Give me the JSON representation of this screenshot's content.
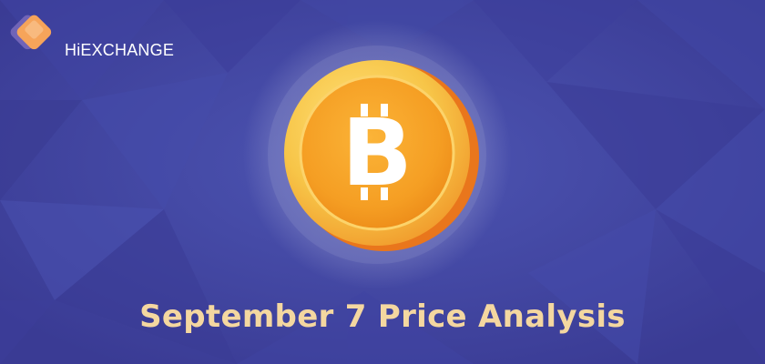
{
  "brand": {
    "name": "HiEXCHANGE"
  },
  "hero": {
    "icon": "bitcoin-coin-icon",
    "symbol": "B"
  },
  "headline": "September 7 Price Analysis",
  "colors": {
    "background": "#3b3c98",
    "coin_outer": "#f5a623",
    "coin_inner": "#f39a1e",
    "headline": "#f4d7a0",
    "logo_orange": "#f6a45a"
  }
}
